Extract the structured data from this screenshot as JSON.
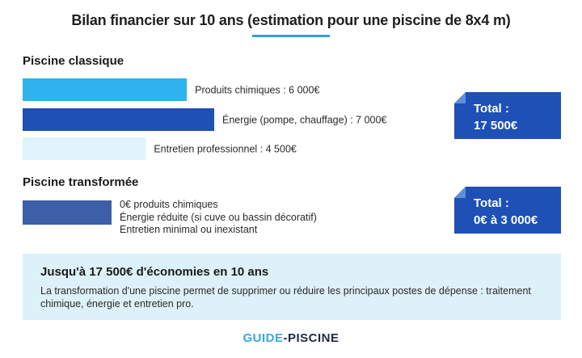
{
  "title": "Bilan financier sur 10 ans (estimation pour une piscine de 8x4 m)",
  "colors": {
    "accent": "#2e9fe0",
    "dark_blue": "#1e50b6",
    "light_blue": "#2fb2ee",
    "pale_blue": "#dff4fb",
    "muted_blue": "#3d5fa8",
    "summary_bg": "#ddf1f8"
  },
  "classic": {
    "heading": "Piscine classique",
    "total_label": "Total :",
    "total_value": "17 500€"
  },
  "transformed": {
    "heading": "Piscine transformée",
    "lines": [
      "0€ produits chimiques",
      "Énergie réduite (si cuve ou bassin décoratif)",
      "Entretien minimal ou inexistant"
    ],
    "total_label": "Total :",
    "total_value": "0€ à 3 000€"
  },
  "summary": {
    "title": "Jusqu'à 17 500€ d'économies en 10 ans",
    "text": "La transformation d'une piscine permet de supprimer ou réduire les principaux postes de dépense : traitement chimique, énergie et entretien pro."
  },
  "brand": {
    "part1": "GUIDE",
    "part2": "-PISCINE"
  },
  "chart_data": {
    "type": "bar",
    "title": "Bilan financier sur 10 ans (estimation pour une piscine de 8x4 m)",
    "orientation": "horizontal",
    "categories": [
      "Produits chimiques : 6 000€",
      "Énergie (pompe, chauffage) : 7 000€",
      "Entretien professionnel : 4 500€"
    ],
    "values": [
      6000,
      7000,
      4500
    ],
    "bar_colors": [
      "#2fb2ee",
      "#1e50b6",
      "#dff4fb"
    ],
    "unit": "€",
    "xlim": [
      0,
      7000
    ],
    "transformed_bar_color": "#3d5fa8"
  }
}
